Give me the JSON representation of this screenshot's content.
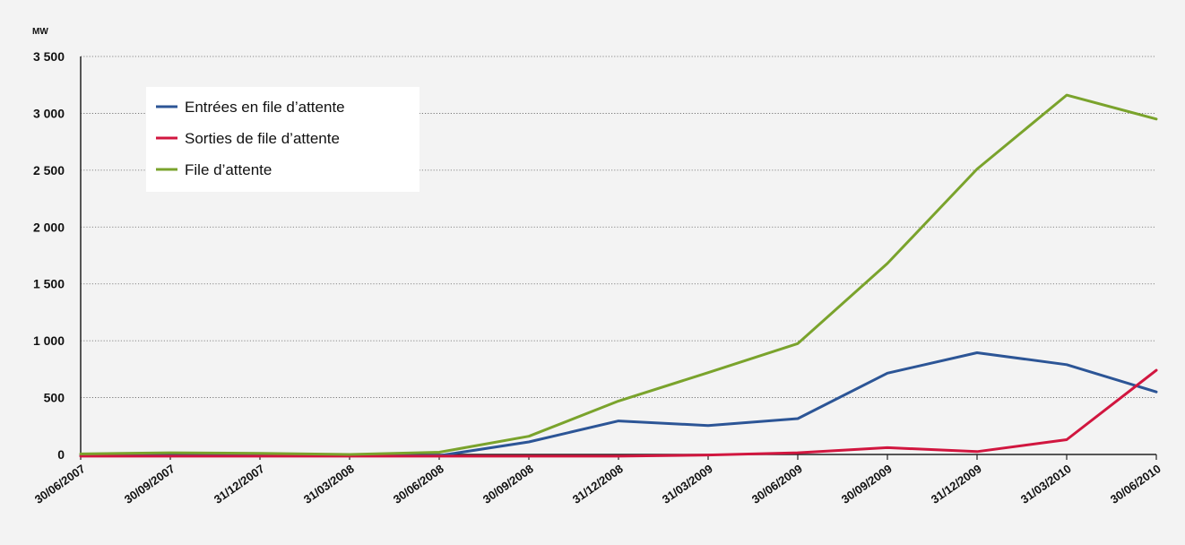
{
  "chart_data": {
    "type": "line",
    "unit_label": "MW",
    "x": [
      "30/06/2007",
      "30/09/2007",
      "31/12/2007",
      "31/03/2008",
      "30/06/2008",
      "30/09/2008",
      "31/12/2008",
      "31/03/2009",
      "30/06/2009",
      "30/09/2009",
      "31/12/2009",
      "31/03/2010",
      "30/06/2010"
    ],
    "ylim": [
      0,
      3500
    ],
    "yticks": [
      {
        "value": 0,
        "label": "0"
      },
      {
        "value": 500,
        "label": "500"
      },
      {
        "value": 1000,
        "label": "1 000"
      },
      {
        "value": 1500,
        "label": "1 500"
      },
      {
        "value": 2000,
        "label": "2 000"
      },
      {
        "value": 2500,
        "label": "2 500"
      },
      {
        "value": 3000,
        "label": "3 000"
      },
      {
        "value": 3500,
        "label": "3 500"
      }
    ],
    "grid": "horizontal dotted",
    "legend_position": "top-left",
    "series": [
      {
        "name": "Entrées en file d’attente",
        "color": "#2c5596",
        "values": [
          -10,
          -10,
          -10,
          -10,
          -10,
          110,
          295,
          255,
          315,
          715,
          895,
          790,
          550
        ]
      },
      {
        "name": "Sorties de file d’attente",
        "color": "#d1163f",
        "values": [
          -15,
          -15,
          -15,
          -15,
          -15,
          -15,
          -15,
          -5,
          15,
          60,
          25,
          130,
          740
        ]
      },
      {
        "name": "File d’attente",
        "color": "#7aa32c",
        "values": [
          5,
          15,
          10,
          0,
          20,
          160,
          470,
          720,
          975,
          1680,
          2510,
          3160,
          2950
        ]
      }
    ]
  }
}
